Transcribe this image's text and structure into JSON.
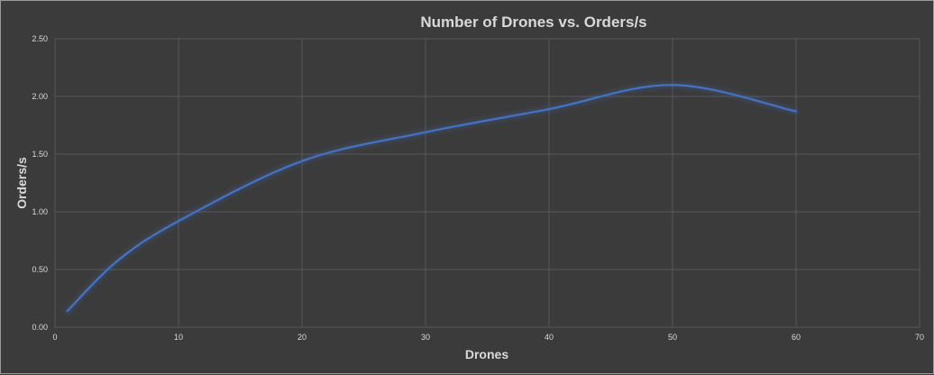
{
  "chart_data": {
    "type": "line",
    "title": "Number of Drones vs. Orders/s",
    "xlabel": "Drones",
    "ylabel": "Orders/s",
    "xlim": [
      0,
      70
    ],
    "ylim": [
      0,
      2.5
    ],
    "x_ticks": [
      "0",
      "10",
      "20",
      "30",
      "40",
      "50",
      "60",
      "70"
    ],
    "y_ticks": [
      "0.00",
      "0.50",
      "1.00",
      "1.50",
      "2.00",
      "2.50"
    ],
    "grid": true,
    "smooth": true,
    "series": [
      {
        "color": "#4472c4",
        "x": [
          1,
          5,
          10,
          20,
          30,
          40,
          50,
          60
        ],
        "values": [
          0.14,
          0.57,
          0.92,
          1.44,
          1.69,
          1.89,
          2.1,
          1.87
        ]
      }
    ]
  }
}
